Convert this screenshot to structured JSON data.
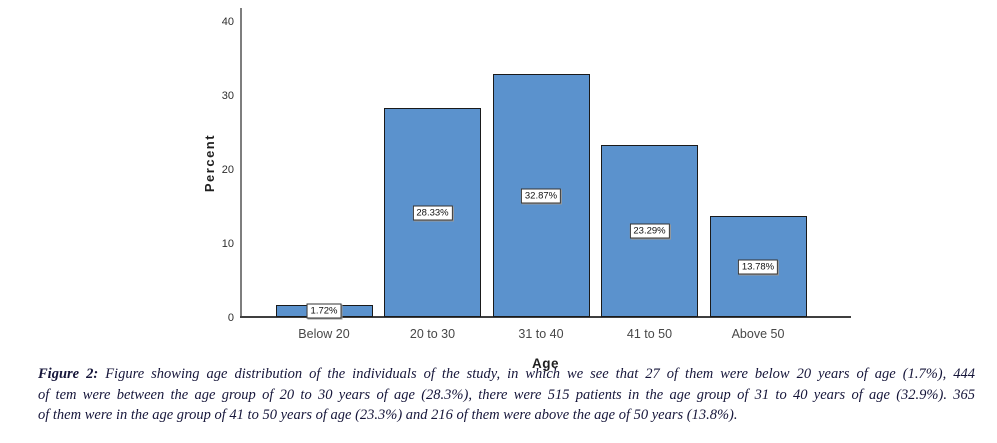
{
  "chart_data": {
    "type": "bar",
    "title": "",
    "categories": [
      "Below 20",
      "20 to 30",
      "31 to 40",
      "41 to 50",
      "Above 50"
    ],
    "values": [
      1.72,
      28.33,
      32.87,
      23.29,
      13.78
    ],
    "value_labels": [
      "1.72%",
      "28.33%",
      "32.87%",
      "23.29%",
      "13.78%"
    ],
    "xlabel": "Age",
    "ylabel": "Percent",
    "ylim": [
      0,
      40
    ],
    "yticks": [
      0,
      10,
      20,
      30,
      40
    ],
    "grid": false,
    "legend": "none",
    "bar_color": "#5b92cd",
    "bar_border_color": "#1a1a1a"
  },
  "caption": {
    "label": "Figure 2:",
    "lines": [
      "Figure showing age distribution of the individuals of the study, in which we see that 27 of them were below 20 years of age (1.7%), 444",
      "of tem were between the age group of 20 to 30 years of age (28.3%), there were 515 patients in the age group of 31 to 40 years of age (32.9%). 365",
      "of them were in the age group of 41 to 50 years of age (23.3%) and 216 of them were above the age of 50 years (13.8%)."
    ]
  }
}
